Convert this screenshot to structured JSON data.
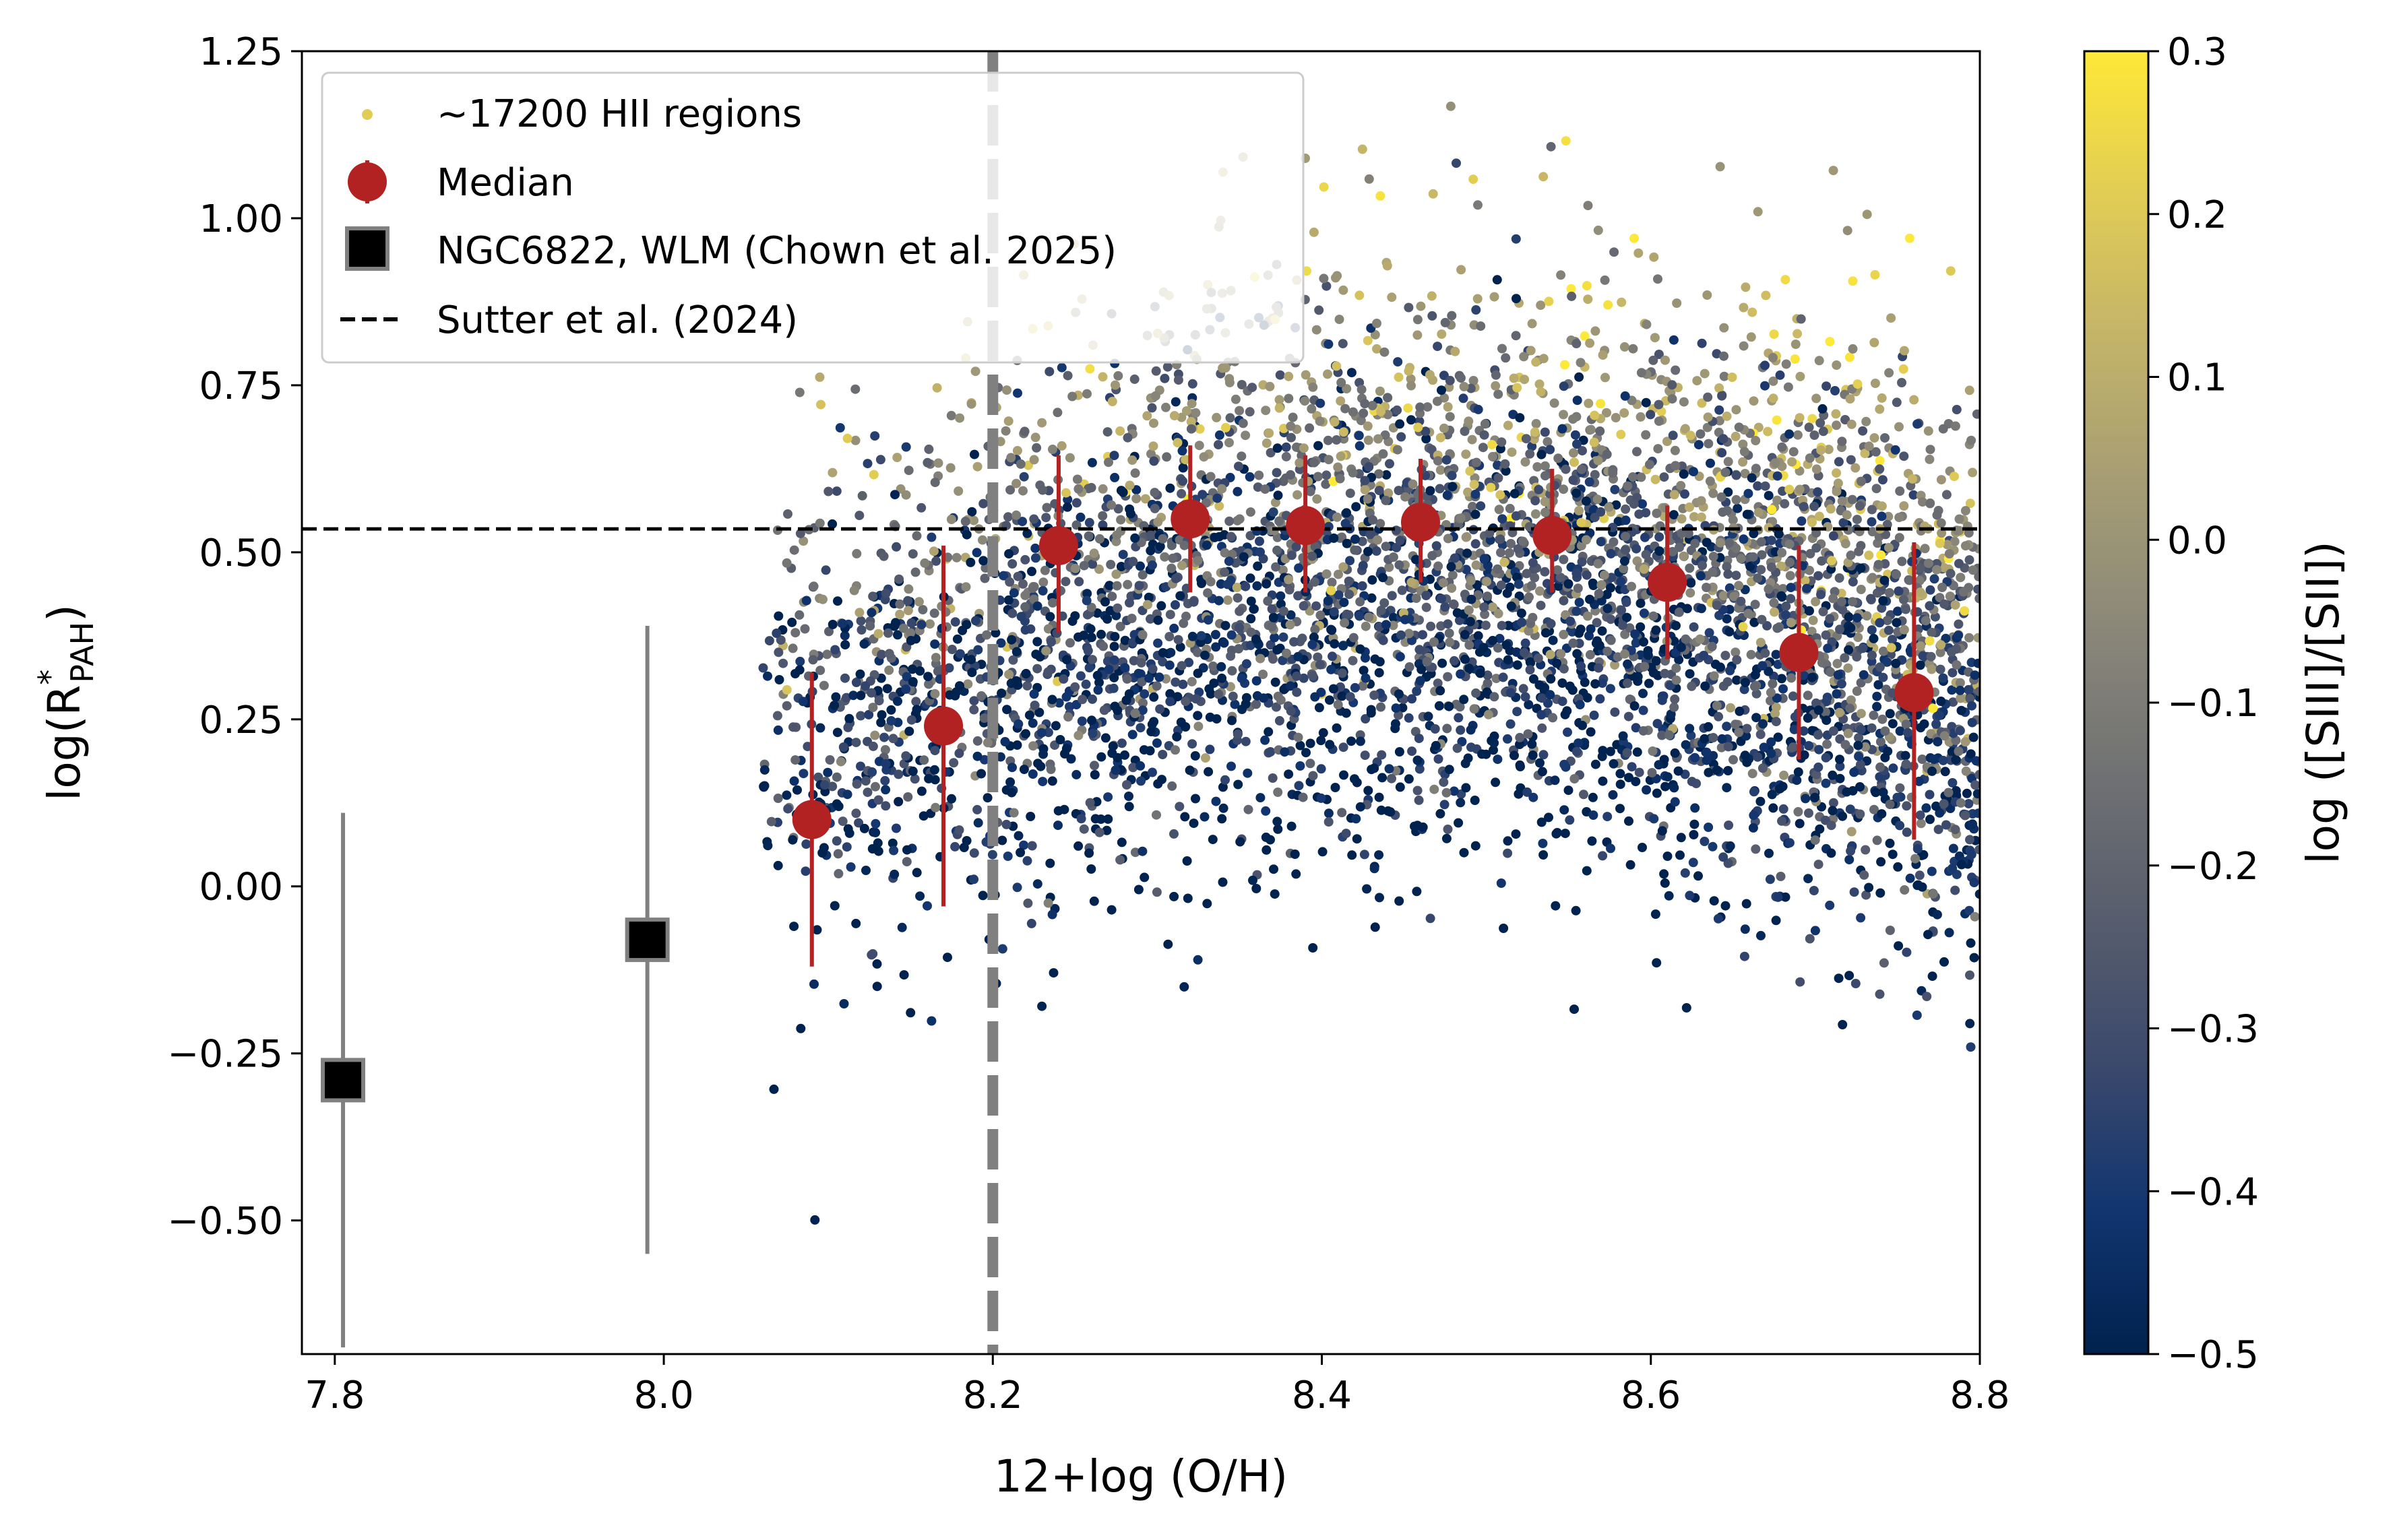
{
  "chart_data": {
    "type": "scatter",
    "xlabel": "12+log (O/H)",
    "ylabel": "log(R",
    "ylabel_sup": "*",
    "ylabel_sub": "PAH",
    "ylabel_close": ")",
    "xlim": [
      7.78,
      8.8
    ],
    "ylim": [
      -0.7,
      1.25
    ],
    "x_ticks": [
      "7.8",
      "8.0",
      "8.2",
      "8.4",
      "8.6",
      "8.8"
    ],
    "y_ticks": [
      "1.25",
      "1.00",
      "0.75",
      "0.50",
      "0.25",
      "0.00",
      "−0.25",
      "−0.50"
    ],
    "grid": false,
    "legend_position": "top-left",
    "legend": [
      "~17200 HII regions",
      "Median",
      "NGC6822, WLM (Chown et al. 2025)",
      "Sutter et al. (2024)"
    ],
    "colorbar": {
      "label": "log ([SIII]/[SII])",
      "range": [
        -0.5,
        0.3
      ],
      "ticks": [
        "0.3",
        "0.2",
        "0.1",
        "0.0",
        "−0.1",
        "−0.2",
        "−0.3",
        "−0.4",
        "−0.5"
      ],
      "colormap": "cividis",
      "colors": [
        "#00224e",
        "#123570",
        "#3b496c",
        "#575d6d",
        "#707173",
        "#8a8779",
        "#a59c74",
        "#c3b369",
        "#e1cc55",
        "#fee838"
      ]
    },
    "series": [
      {
        "name": "Median",
        "color": "#b22222",
        "x": [
          8.09,
          8.17,
          8.24,
          8.32,
          8.39,
          8.46,
          8.54,
          8.61,
          8.69,
          8.76
        ],
        "y": [
          0.1,
          0.24,
          0.51,
          0.55,
          0.54,
          0.545,
          0.525,
          0.455,
          0.35,
          0.29
        ],
        "y_low": [
          -0.12,
          -0.03,
          0.38,
          0.44,
          0.44,
          0.455,
          0.44,
          0.34,
          0.19,
          0.07
        ],
        "y_high": [
          0.32,
          0.51,
          0.645,
          0.66,
          0.645,
          0.64,
          0.625,
          0.57,
          0.51,
          0.515
        ]
      },
      {
        "name": "NGC6822, WLM (Chown et al. 2025)",
        "color": "#000000",
        "x": [
          7.805,
          7.99
        ],
        "y": [
          -0.29,
          -0.08
        ],
        "y_low": [
          -0.69,
          -0.55
        ],
        "y_high": [
          0.11,
          0.39
        ]
      }
    ],
    "reference_lines": [
      {
        "name": "Sutter et al. (2024)",
        "orientation": "horizontal",
        "value": 0.535,
        "style": "dashed",
        "color": "#000000"
      },
      {
        "orientation": "vertical",
        "value": 8.2,
        "style": "dashed",
        "color": "#808080"
      }
    ],
    "scatter_cloud": {
      "count": 17200,
      "description_hidden": true
    }
  }
}
